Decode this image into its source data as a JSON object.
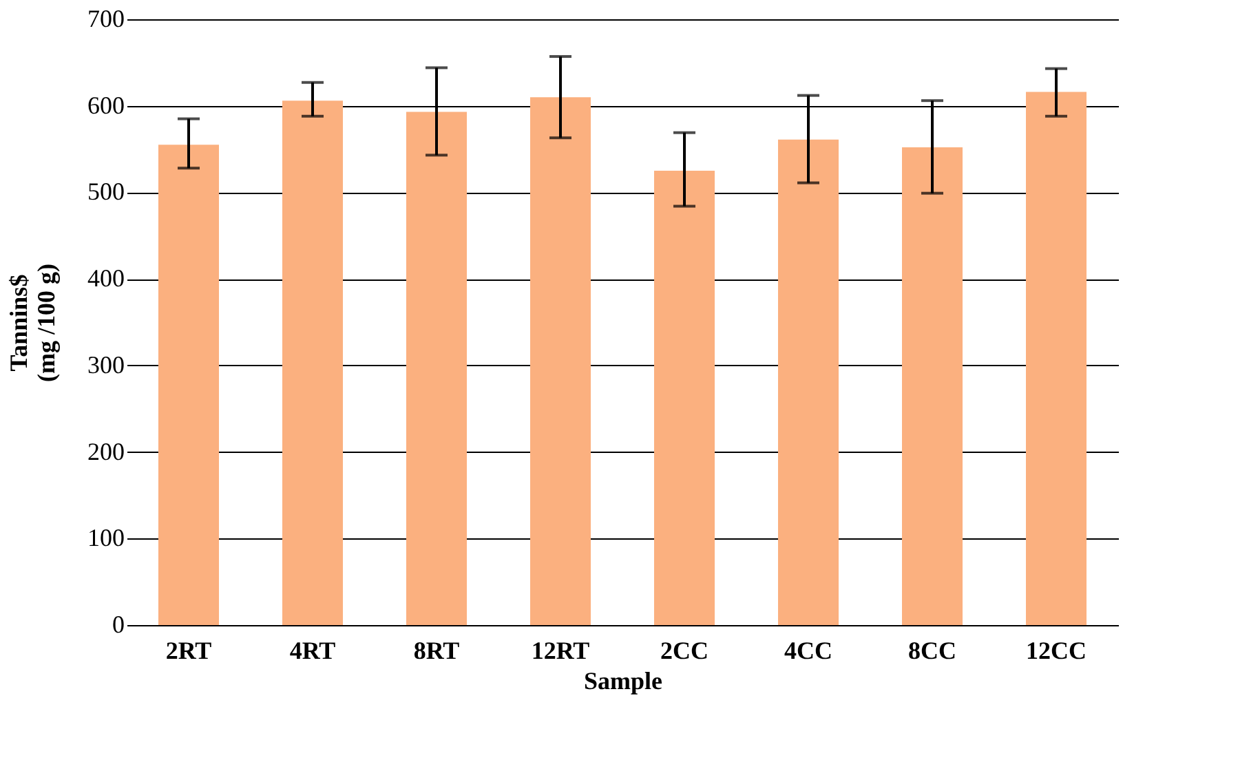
{
  "chart_data": {
    "type": "bar",
    "xlabel": "Sample",
    "ylabel": "Tannins$\n(mg /100 g)",
    "categories": [
      "2RT",
      "4RT",
      "8RT",
      "12RT",
      "2CC",
      "4CC",
      "8CC",
      "12CC"
    ],
    "values": [
      555,
      606,
      593,
      610,
      525,
      561,
      552,
      616
    ],
    "errors": [
      [
        528,
        585
      ],
      [
        588,
        627
      ],
      [
        543,
        644
      ],
      [
        563,
        657
      ],
      [
        484,
        569
      ],
      [
        511,
        612
      ],
      [
        499,
        606
      ],
      [
        588,
        643
      ]
    ],
    "color": "#fbb07f",
    "ylim": [
      0,
      700
    ],
    "yticks": [
      0,
      100,
      200,
      300,
      400,
      500,
      600,
      700
    ],
    "grid": "y"
  }
}
